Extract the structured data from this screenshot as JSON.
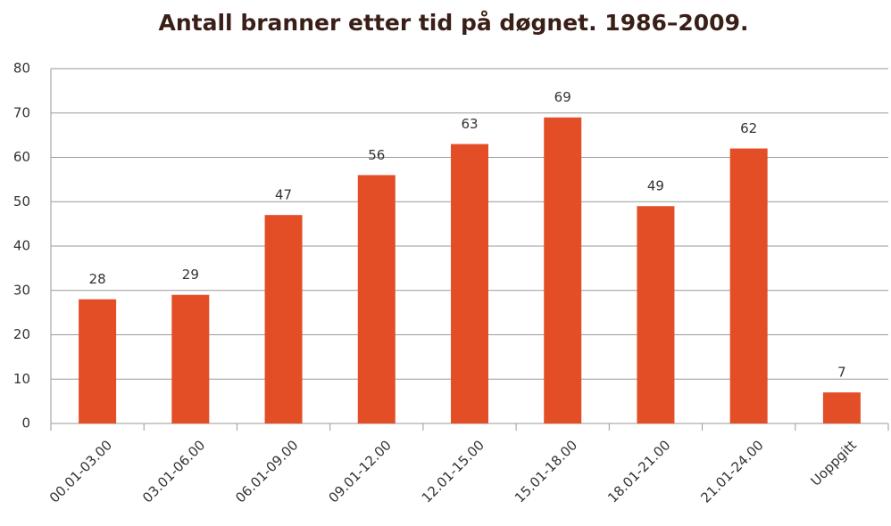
{
  "chart_data": {
    "type": "bar",
    "title": "Antall branner etter tid på døgnet. 1986–2009.",
    "categories": [
      "00.01-03.00",
      "03.01-06.00",
      "06.01-09.00",
      "09.01-12.00",
      "12.01-15.00",
      "15.01-18.00",
      "18.01-21.00",
      "21.01-24.00",
      "Uoppgitt"
    ],
    "values": [
      28,
      29,
      47,
      56,
      63,
      69,
      49,
      62,
      7
    ],
    "color": "#e34e26",
    "ylim": [
      0,
      80
    ],
    "yticks": [
      0,
      10,
      20,
      30,
      40,
      50,
      60,
      70,
      80
    ],
    "grid": true
  }
}
